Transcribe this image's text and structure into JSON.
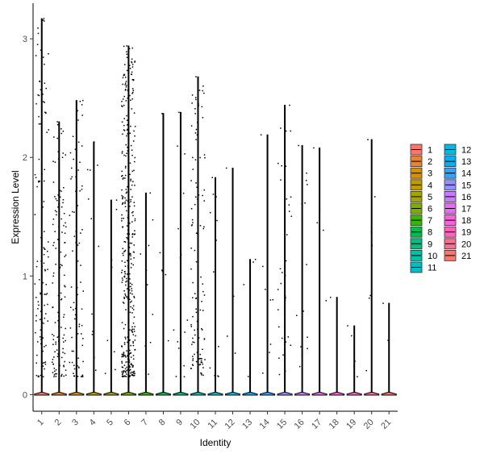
{
  "chart_data": {
    "type": "violin",
    "xlabel": "Identity",
    "ylabel": "Expression Level",
    "ylim": [
      -0.14,
      3.3
    ],
    "yticks": [
      0,
      1,
      2,
      3
    ],
    "categories": [
      "1",
      "2",
      "3",
      "4",
      "5",
      "6",
      "7",
      "8",
      "9",
      "10",
      "11",
      "12",
      "13",
      "14",
      "15",
      "16",
      "17",
      "18",
      "19",
      "20",
      "21"
    ],
    "colors": [
      "#F8766D",
      "#EA8331",
      "#D89000",
      "#C09B00",
      "#A3A500",
      "#7CAE00",
      "#39B600",
      "#00BB4E",
      "#00BF7D",
      "#00C1A3",
      "#00BFC4",
      "#00BAE0",
      "#00B0F6",
      "#35A2FF",
      "#9590FF",
      "#C77CFF",
      "#E76BF3",
      "#FA62DB",
      "#FF62BC",
      "#FF6C91",
      "#F8766D"
    ],
    "max_values": [
      3.17,
      2.3,
      2.48,
      2.13,
      1.64,
      2.94,
      1.7,
      2.37,
      2.38,
      2.68,
      1.83,
      1.91,
      1.14,
      2.19,
      2.44,
      2.1,
      2.08,
      0.82,
      0.58,
      2.15,
      0.77
    ],
    "nonzero_counts": [
      110,
      130,
      80,
      12,
      8,
      380,
      10,
      6,
      15,
      110,
      12,
      5,
      4,
      8,
      35,
      15,
      5,
      1,
      5,
      8,
      2
    ],
    "legend": {
      "col1": [
        "1",
        "2",
        "3",
        "4",
        "5",
        "6",
        "7",
        "8",
        "9",
        "10",
        "11"
      ],
      "col2": [
        "12",
        "13",
        "14",
        "15",
        "16",
        "17",
        "18",
        "19",
        "20",
        "21"
      ]
    }
  }
}
